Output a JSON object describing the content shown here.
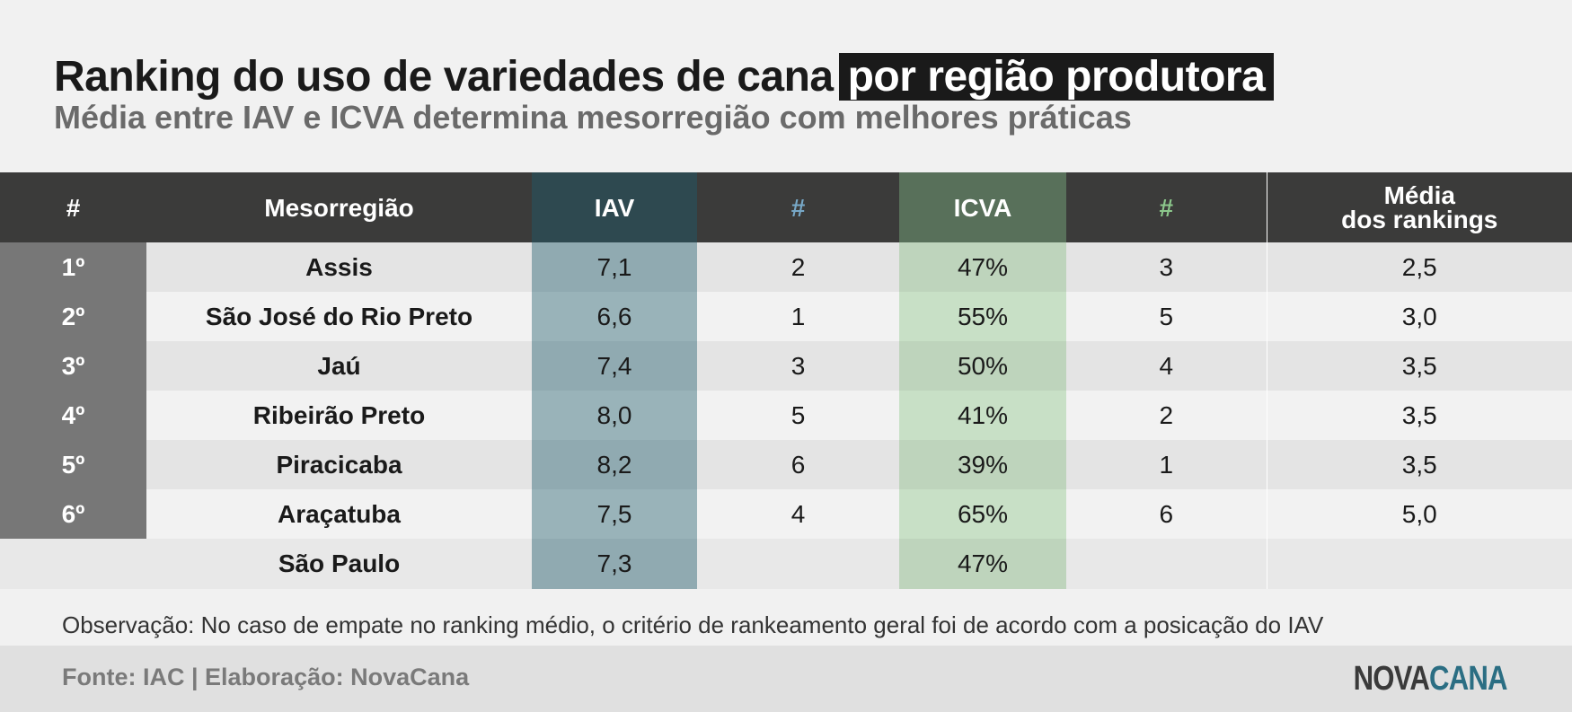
{
  "header": {
    "title_main": "Ranking do uso de variedades de cana",
    "title_highlight": "por região produtora",
    "subtitle": "Média entre IAV e ICVA determina mesorregião com melhores práticas"
  },
  "table": {
    "headers": {
      "pos": "#",
      "region": "Mesorregião",
      "iav": "IAV",
      "iav_rank": "#",
      "icva": "ICVA",
      "icva_rank": "#",
      "media_line1": "Média",
      "media_line2": "dos rankings"
    },
    "rows": [
      {
        "pos": "1º",
        "region": "Assis",
        "iav": "7,1",
        "iav_rank": "2",
        "icva": "47%",
        "icva_rank": "3",
        "media": "2,5"
      },
      {
        "pos": "2º",
        "region": "São José do Rio Preto",
        "iav": "6,6",
        "iav_rank": "1",
        "icva": "55%",
        "icva_rank": "5",
        "media": "3,0"
      },
      {
        "pos": "3º",
        "region": "Jaú",
        "iav": "7,4",
        "iav_rank": "3",
        "icva": "50%",
        "icva_rank": "4",
        "media": "3,5"
      },
      {
        "pos": "4º",
        "region": "Ribeirão Preto",
        "iav": "8,0",
        "iav_rank": "5",
        "icva": "41%",
        "icva_rank": "2",
        "media": "3,5"
      },
      {
        "pos": "5º",
        "region": "Piracicaba",
        "iav": "8,2",
        "iav_rank": "6",
        "icva": "39%",
        "icva_rank": "1",
        "media": "3,5"
      },
      {
        "pos": "6º",
        "region": "Araçatuba",
        "iav": "7,5",
        "iav_rank": "4",
        "icva": "65%",
        "icva_rank": "6",
        "media": "5,0"
      }
    ],
    "total": {
      "region": "São Paulo",
      "iav": "7,3",
      "icva": "47%"
    }
  },
  "observation": "Observação: No caso de empate no ranking médio, o critério de rankeamento geral foi de acordo com a posicação do IAV",
  "footer": {
    "source": "Fonte: IAC | Elaboração: NovaCana",
    "logo_part1": "NOVA",
    "logo_part2": "CANA"
  },
  "colors": {
    "header_bg": "#3b3b3a",
    "iav_header": "#2e4950",
    "icva_header": "#58705a",
    "iav_column": "#90aab1",
    "icva_column": "#bed4bc",
    "rank_blue": "#2f5f7a",
    "rank_green": "#7ebf7e",
    "logo_blue": "#2b6e83"
  }
}
